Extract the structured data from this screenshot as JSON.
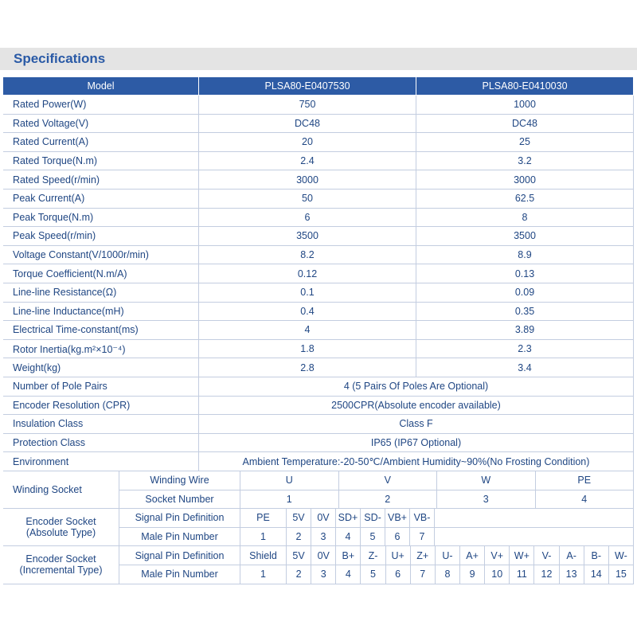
{
  "header": {
    "title": "Specifications"
  },
  "specs": {
    "columns": [
      "Model",
      "PLSA80-E0407530",
      "PLSA80-E0410030"
    ],
    "rows": [
      [
        "Rated Power(W)",
        "750",
        "1000"
      ],
      [
        "Rated Voltage(V)",
        "DC48",
        "DC48"
      ],
      [
        "Rated Current(A)",
        "20",
        "25"
      ],
      [
        "Rated Torque(N.m)",
        "2.4",
        "3.2"
      ],
      [
        "Rated Speed(r/min)",
        "3000",
        "3000"
      ],
      [
        "Peak Current(A)",
        "50",
        "62.5"
      ],
      [
        "Peak Torque(N.m)",
        "6",
        "8"
      ],
      [
        "Peak Speed(r/min)",
        "3500",
        "3500"
      ],
      [
        "Voltage Constant(V/1000r/min)",
        "8.2",
        "8.9"
      ],
      [
        "Torque Coefficient(N.m/A)",
        "0.12",
        "0.13"
      ],
      [
        "Line-line Resistance(Ω)",
        "0.1",
        "0.09"
      ],
      [
        "Line-line Inductance(mH)",
        "0.4",
        "0.35"
      ],
      [
        "Electrical Time-constant(ms)",
        "4",
        "3.89"
      ],
      [
        "Rotor Inertia(kg.m²×10⁻⁴)",
        "1.8",
        "2.3"
      ],
      [
        "Weight(kg)",
        "2.8",
        "3.4"
      ]
    ]
  },
  "shared": {
    "rows": [
      [
        "Number of Pole Pairs",
        "4 (5 Pairs Of Poles Are Optional)"
      ],
      [
        "Encoder Resolution (CPR)",
        "2500CPR(Absolute encoder available)"
      ],
      [
        "Insulation Class",
        "Class F"
      ],
      [
        "Protection Class",
        "IP65 (IP67 Optional)"
      ],
      [
        "Environment",
        "Ambient Temperature:-20-50℃/Ambient Humidity~90%(No Frosting Condition)"
      ]
    ]
  },
  "winding": {
    "label": [
      "Winding Socket"
    ],
    "rows": [
      [
        "Winding Wire",
        "U",
        "V",
        "W",
        "PE"
      ],
      [
        "Socket Number",
        "1",
        "2",
        "3",
        "4"
      ]
    ]
  },
  "encoder_absolute": {
    "label": [
      "Encoder Socket",
      "(Absolute Type)"
    ],
    "rows": [
      [
        "Signal Pin Definition",
        "PE",
        "5V",
        "0V",
        "SD+",
        "SD-",
        "VB+",
        "VB-"
      ],
      [
        "Male Pin Number",
        "1",
        "2",
        "3",
        "4",
        "5",
        "6",
        "7"
      ]
    ]
  },
  "encoder_incremental": {
    "label": [
      "Encoder Socket",
      "(Incremental Type)"
    ],
    "rows": [
      [
        "Signal Pin Definition",
        "Shield",
        "5V",
        "0V",
        "B+",
        "Z-",
        "U+",
        "Z+",
        "U-",
        "A+",
        "V+",
        "W+",
        "V-",
        "A-",
        "B-",
        "W-"
      ],
      [
        "Male Pin Number",
        "1",
        "2",
        "3",
        "4",
        "5",
        "6",
        "7",
        "8",
        "9",
        "10",
        "11",
        "12",
        "13",
        "14",
        "15"
      ]
    ]
  }
}
